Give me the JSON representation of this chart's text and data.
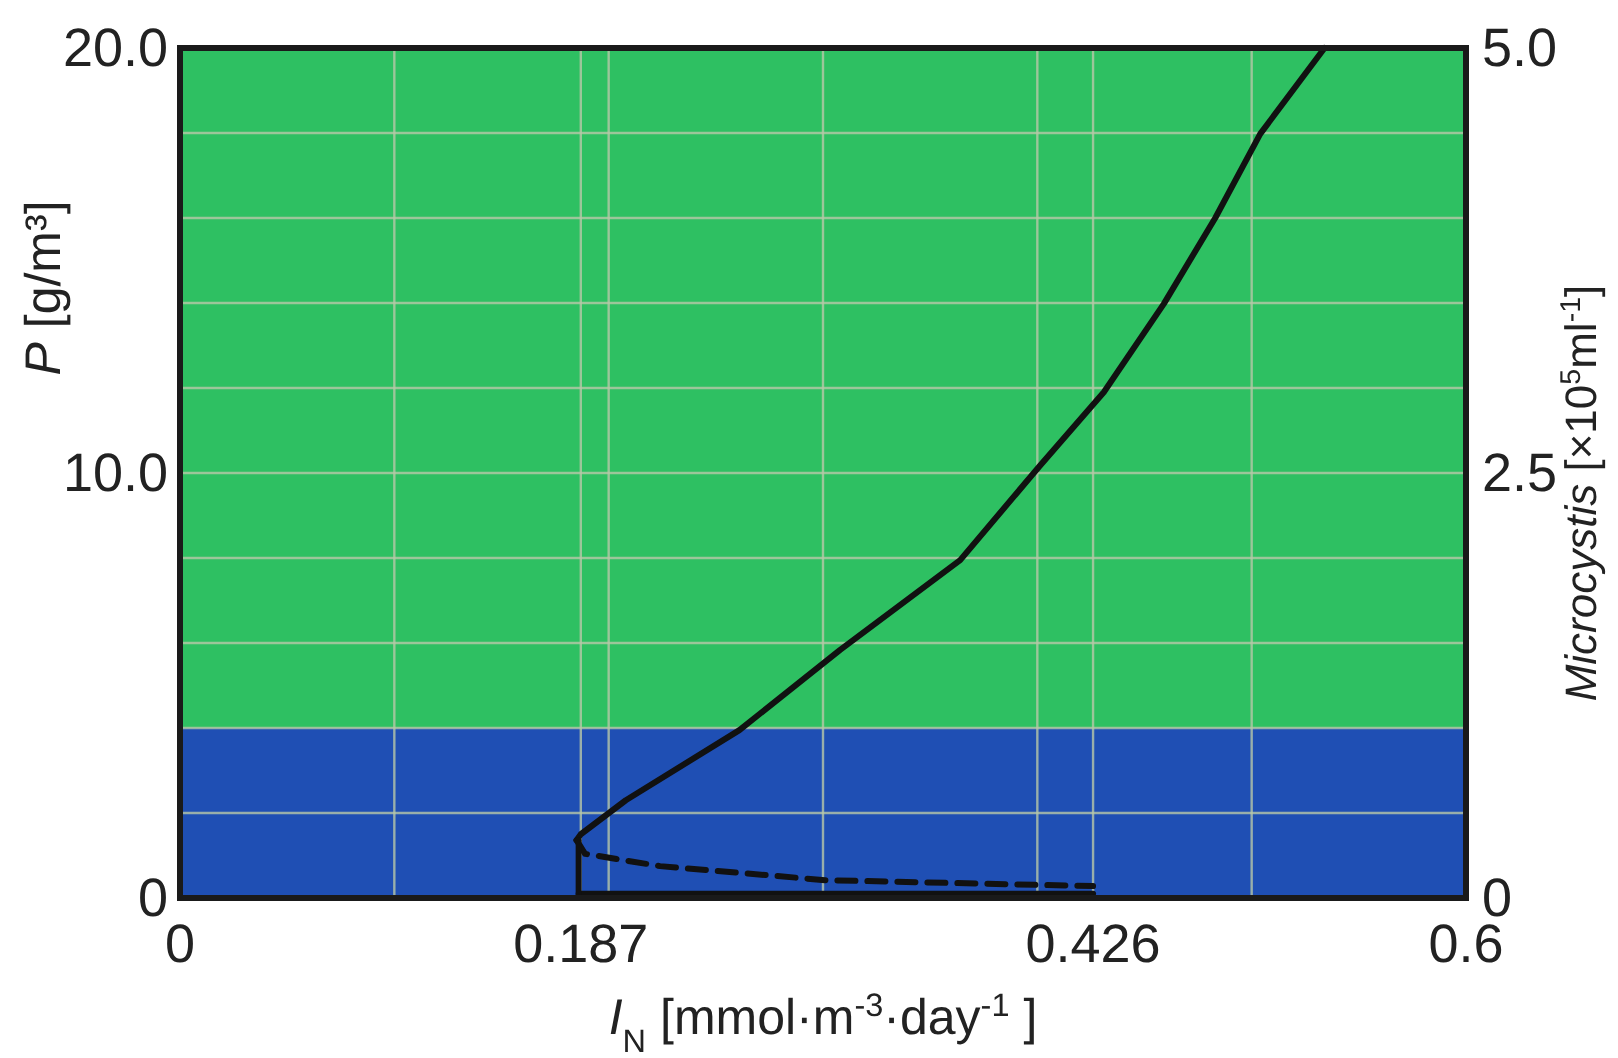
{
  "chart_data": {
    "type": "line",
    "xlabel": "I$_{N}$ [mmol·m$^{-3}$·day$^{-1}$ ]",
    "ylabel": "P [g/m³]",
    "y2label": "Microcystis [×10$^{5}$ml$^{-1}$]",
    "xlim": [
      0,
      0.6
    ],
    "xticks": [
      0,
      {
        "value": 0.1,
        "label": null
      },
      0.187,
      {
        "value": 0.2,
        "label": null
      },
      {
        "value": 0.3,
        "label": null
      },
      {
        "value": 0.4,
        "label": null
      },
      0.426,
      {
        "value": 0.5,
        "label": null
      },
      0.6
    ],
    "ylim": [
      0,
      20
    ],
    "yticks": [
      0,
      {
        "value": 2,
        "label": null
      },
      {
        "value": 4,
        "label": null
      },
      {
        "value": 6,
        "label": null
      },
      {
        "value": 8,
        "label": null
      },
      {
        "value": 10,
        "label": "10.0"
      },
      {
        "value": 12,
        "label": null
      },
      {
        "value": 14,
        "label": null
      },
      {
        "value": 16,
        "label": null
      },
      {
        "value": 18,
        "label": null
      },
      {
        "value": 20,
        "label": "20.0"
      }
    ],
    "y2lim": [
      0,
      5
    ],
    "y2ticks": [
      0,
      2.5,
      {
        "value": 5,
        "label": "5.0"
      }
    ],
    "grid": true,
    "bands": [
      {
        "axis": "y",
        "from": 0,
        "to": 4,
        "color": "#1f4fb4"
      },
      {
        "axis": "y",
        "from": 4,
        "to": 20,
        "color": "#2ec062"
      }
    ],
    "series": [
      {
        "color": "#111111",
        "line_style": "solid",
        "x": [
          0.185,
          0.187,
          0.208,
          0.261,
          0.308,
          0.364,
          0.401,
          0.431,
          0.459,
          0.483,
          0.504,
          0.534
        ],
        "values": [
          1.36,
          1.5,
          2.3,
          3.95,
          5.84,
          7.95,
          10.16,
          11.9,
          13.98,
          16.0,
          17.98,
          20
        ]
      },
      {
        "color": "#111111",
        "line_style": "dashed",
        "x": [
          0.185,
          0.189,
          0.224,
          0.301,
          0.426
        ],
        "values": [
          1.36,
          1.04,
          0.75,
          0.42,
          0.28
        ]
      },
      {
        "color": "#111111",
        "line_style": "solid",
        "x": [
          0.186,
          0.426
        ],
        "values": [
          0.1,
          0.1
        ]
      },
      {
        "color": "#111111",
        "line_style": "solid",
        "x": [
          0.186,
          0.186
        ],
        "values": [
          0,
          1.36
        ]
      }
    ]
  }
}
